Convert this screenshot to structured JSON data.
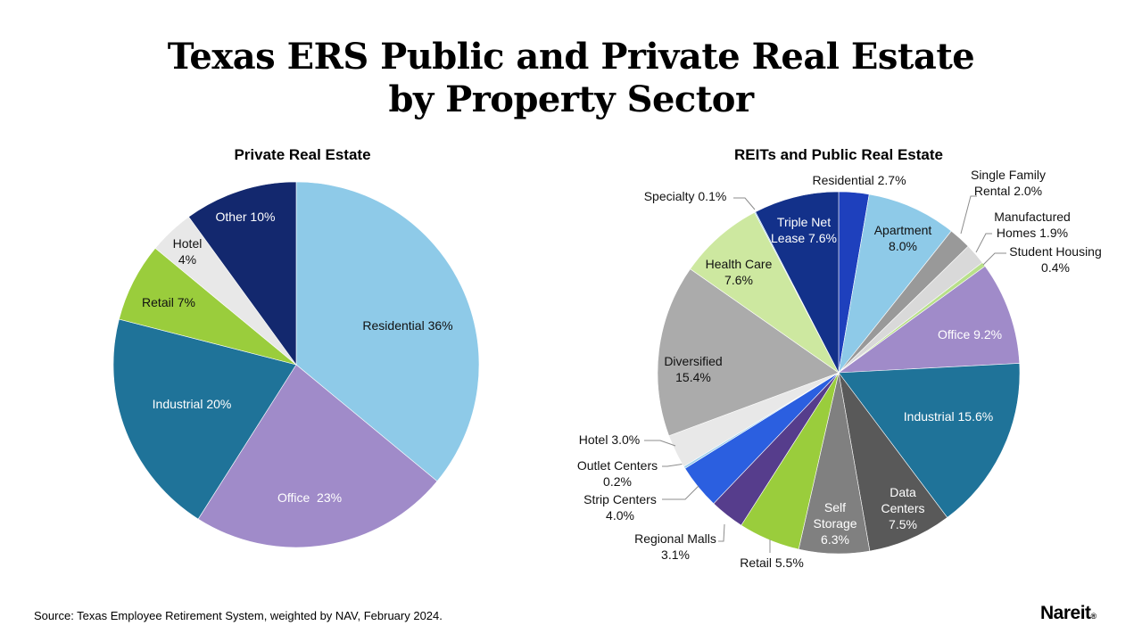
{
  "title": "Texas ERS Public and Private Real Estate\nby Property Sector",
  "source": "Source: Texas Employee Retirement System, weighted by NAV, February 2024.",
  "logo": "Nareit.",
  "chart_data": [
    {
      "type": "pie",
      "title": "Private Real Estate",
      "start": "12 o'clock, clockwise",
      "slices": [
        {
          "name": "Residential",
          "value": 36,
          "label": "Residential 36%",
          "color": "#8ecae8"
        },
        {
          "name": "Office",
          "value": 23,
          "label": "Office  23%",
          "color": "#a08bc9"
        },
        {
          "name": "Industrial",
          "value": 20,
          "label": "Industrial 20%",
          "color": "#1f7399"
        },
        {
          "name": "Retail",
          "value": 7,
          "label": "Retail 7%",
          "color": "#9acd3c"
        },
        {
          "name": "Hotel",
          "value": 4,
          "label": "Hotel\n4%",
          "color": "#e8e8e8"
        },
        {
          "name": "Other",
          "value": 10,
          "label": "Other 10%",
          "color": "#13286e"
        }
      ]
    },
    {
      "type": "pie",
      "title": "REITs and Public Real Estate",
      "start": "12 o'clock, clockwise",
      "slices": [
        {
          "name": "Residential",
          "value": 2.7,
          "label": "Residential 2.7%",
          "color": "#1e40bd"
        },
        {
          "name": "Apartment",
          "value": 8.0,
          "label": "Apartment\n8.0%",
          "color": "#8ecae8"
        },
        {
          "name": "Single Family Rental",
          "value": 2.0,
          "label": "Single Family\nRental 2.0%",
          "color": "#999999"
        },
        {
          "name": "Manufactured Homes",
          "value": 1.9,
          "label": "Manufactured\nHomes 1.9%",
          "color": "#d9d9d9"
        },
        {
          "name": "Student Housing",
          "value": 0.4,
          "label": "Student Housing\n0.4%",
          "color": "#b8e08a"
        },
        {
          "name": "Office",
          "value": 9.2,
          "label": "Office 9.2%",
          "color": "#a08bc9"
        },
        {
          "name": "Industrial",
          "value": 15.6,
          "label": "Industrial 15.6%",
          "color": "#1f7399"
        },
        {
          "name": "Data Centers",
          "value": 7.5,
          "label": "Data\nCenters\n7.5%",
          "color": "#595959"
        },
        {
          "name": "Self Storage",
          "value": 6.3,
          "label": "Self\nStorage\n6.3%",
          "color": "#808080"
        },
        {
          "name": "Retail",
          "value": 5.5,
          "label": "Retail 5.5%",
          "color": "#9acd3c"
        },
        {
          "name": "Regional Malls",
          "value": 3.1,
          "label": "Regional Malls\n3.1%",
          "color": "#563d8c"
        },
        {
          "name": "Strip Centers",
          "value": 4.0,
          "label": "Strip Centers\n4.0%",
          "color": "#2b5fe0"
        },
        {
          "name": "Outlet Centers",
          "value": 0.2,
          "label": "Outlet Centers\n0.2%",
          "color": "#9fd0ec"
        },
        {
          "name": "Hotel",
          "value": 3.0,
          "label": "Hotel 3.0%",
          "color": "#e8e8e8"
        },
        {
          "name": "Diversified",
          "value": 15.4,
          "label": "Diversified\n15.4%",
          "color": "#ababab"
        },
        {
          "name": "Health Care",
          "value": 7.6,
          "label": "Health Care\n7.6%",
          "color": "#cde8a0"
        },
        {
          "name": "Specialty",
          "value": 0.1,
          "label": "Specialty 0.1%",
          "color": "#8ecae8"
        },
        {
          "name": "Triple Net Lease",
          "value": 7.6,
          "label": "Triple Net\nLease 7.6%",
          "color": "#13318a"
        }
      ]
    }
  ]
}
